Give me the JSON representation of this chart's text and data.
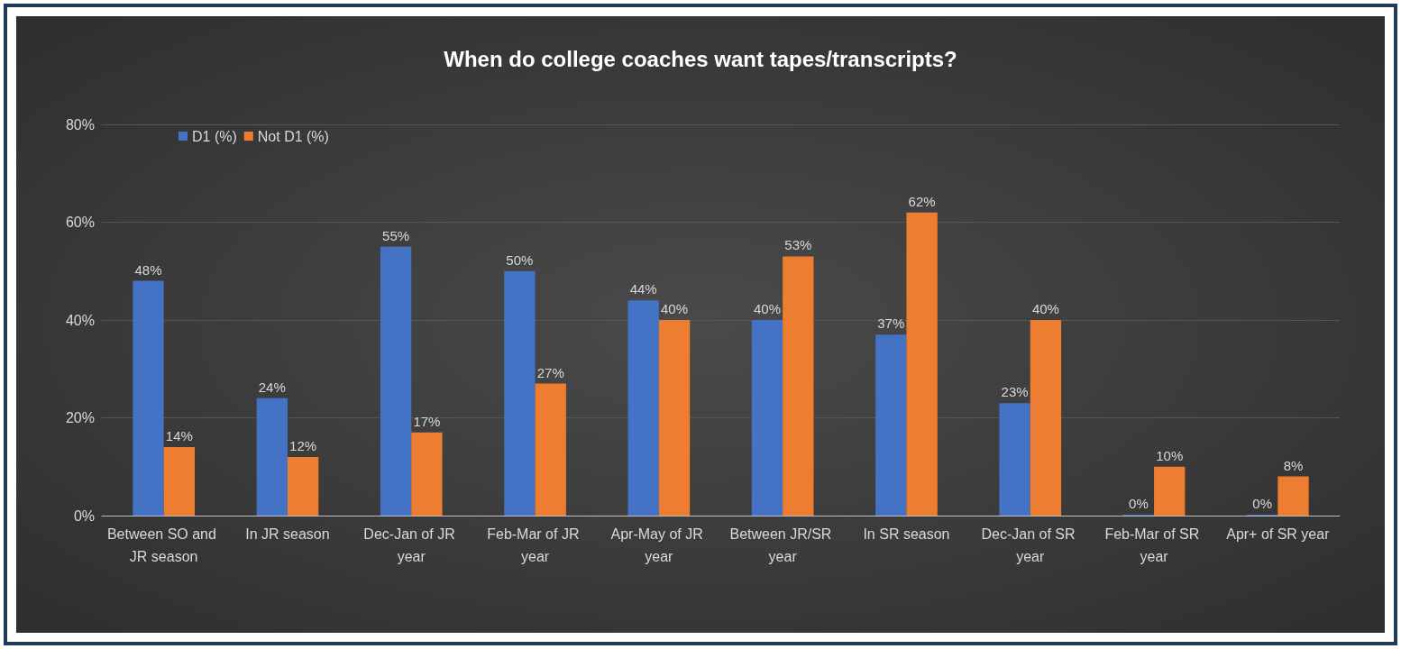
{
  "chart_data": {
    "type": "bar",
    "title": "When do college coaches want tapes/transcripts?",
    "categories": [
      "Between SO and JR season",
      "In JR season",
      "Dec-Jan of JR year",
      "Feb-Mar of JR year",
      "Apr-May of JR year",
      "Between JR/SR year",
      "In SR season",
      "Dec-Jan of SR year",
      "Feb-Mar of SR year",
      "Apr+ of SR year"
    ],
    "series": [
      {
        "name": "D1 (%)",
        "color": "#4472c4",
        "values": [
          48,
          24,
          55,
          50,
          44,
          40,
          37,
          23,
          0,
          0
        ],
        "value_labels": [
          "48%",
          "24%",
          "55%",
          "50%",
          "44%",
          "40%",
          "37%",
          "23%",
          "0%",
          "0%"
        ]
      },
      {
        "name": "Not D1 (%)",
        "color": "#ed7d31",
        "values": [
          14,
          12,
          17,
          27,
          40,
          53,
          62,
          40,
          10,
          8
        ],
        "value_labels": [
          "14%",
          "12%",
          "17%",
          "27%",
          "40%",
          "53%",
          "62%",
          "40%",
          "10%",
          "8%"
        ]
      }
    ],
    "ylim": [
      0,
      80
    ],
    "yticks": [
      {
        "value": 0,
        "label": "0%"
      },
      {
        "value": 20,
        "label": "20%"
      },
      {
        "value": 40,
        "label": "40%"
      },
      {
        "value": 60,
        "label": "60%"
      },
      {
        "value": 80,
        "label": "80%"
      }
    ],
    "grid": "y",
    "legend": "top left"
  }
}
